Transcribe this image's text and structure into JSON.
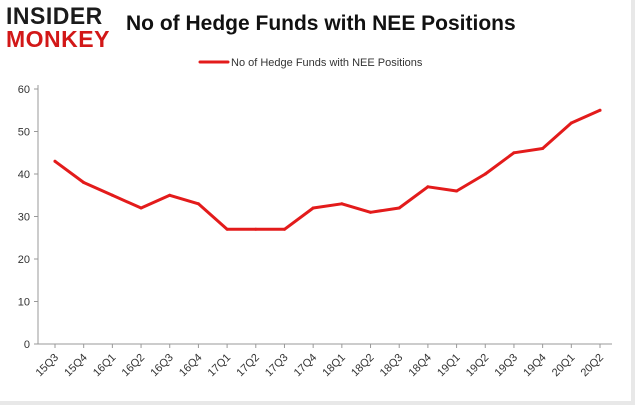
{
  "logo": {
    "line1": "INSIDER",
    "line2": "MONKEY"
  },
  "colors": {
    "series": "#e31b1b",
    "axis": "#999999",
    "logo_red": "#d21818"
  },
  "chart_data": {
    "type": "line",
    "title": "No of Hedge Funds with NEE Positions",
    "xlabel": "",
    "ylabel": "",
    "categories": [
      "15Q3",
      "15Q4",
      "16Q1",
      "16Q2",
      "16Q3",
      "16Q4",
      "17Q1",
      "17Q2",
      "17Q3",
      "17Q4",
      "18Q1",
      "18Q2",
      "18Q3",
      "18Q4",
      "19Q1",
      "19Q2",
      "19Q3",
      "19Q4",
      "20Q1",
      "20Q2"
    ],
    "series": [
      {
        "name": "No of Hedge Funds with NEE Positions",
        "values": [
          43,
          38,
          35,
          32,
          35,
          33,
          27,
          27,
          27,
          32,
          33,
          31,
          32,
          37,
          36,
          40,
          45,
          46,
          52,
          55
        ]
      }
    ],
    "ylim": [
      0,
      60
    ],
    "yticks": [
      0,
      10,
      20,
      30,
      40,
      50,
      60
    ],
    "grid": false,
    "legend": "top-center"
  }
}
